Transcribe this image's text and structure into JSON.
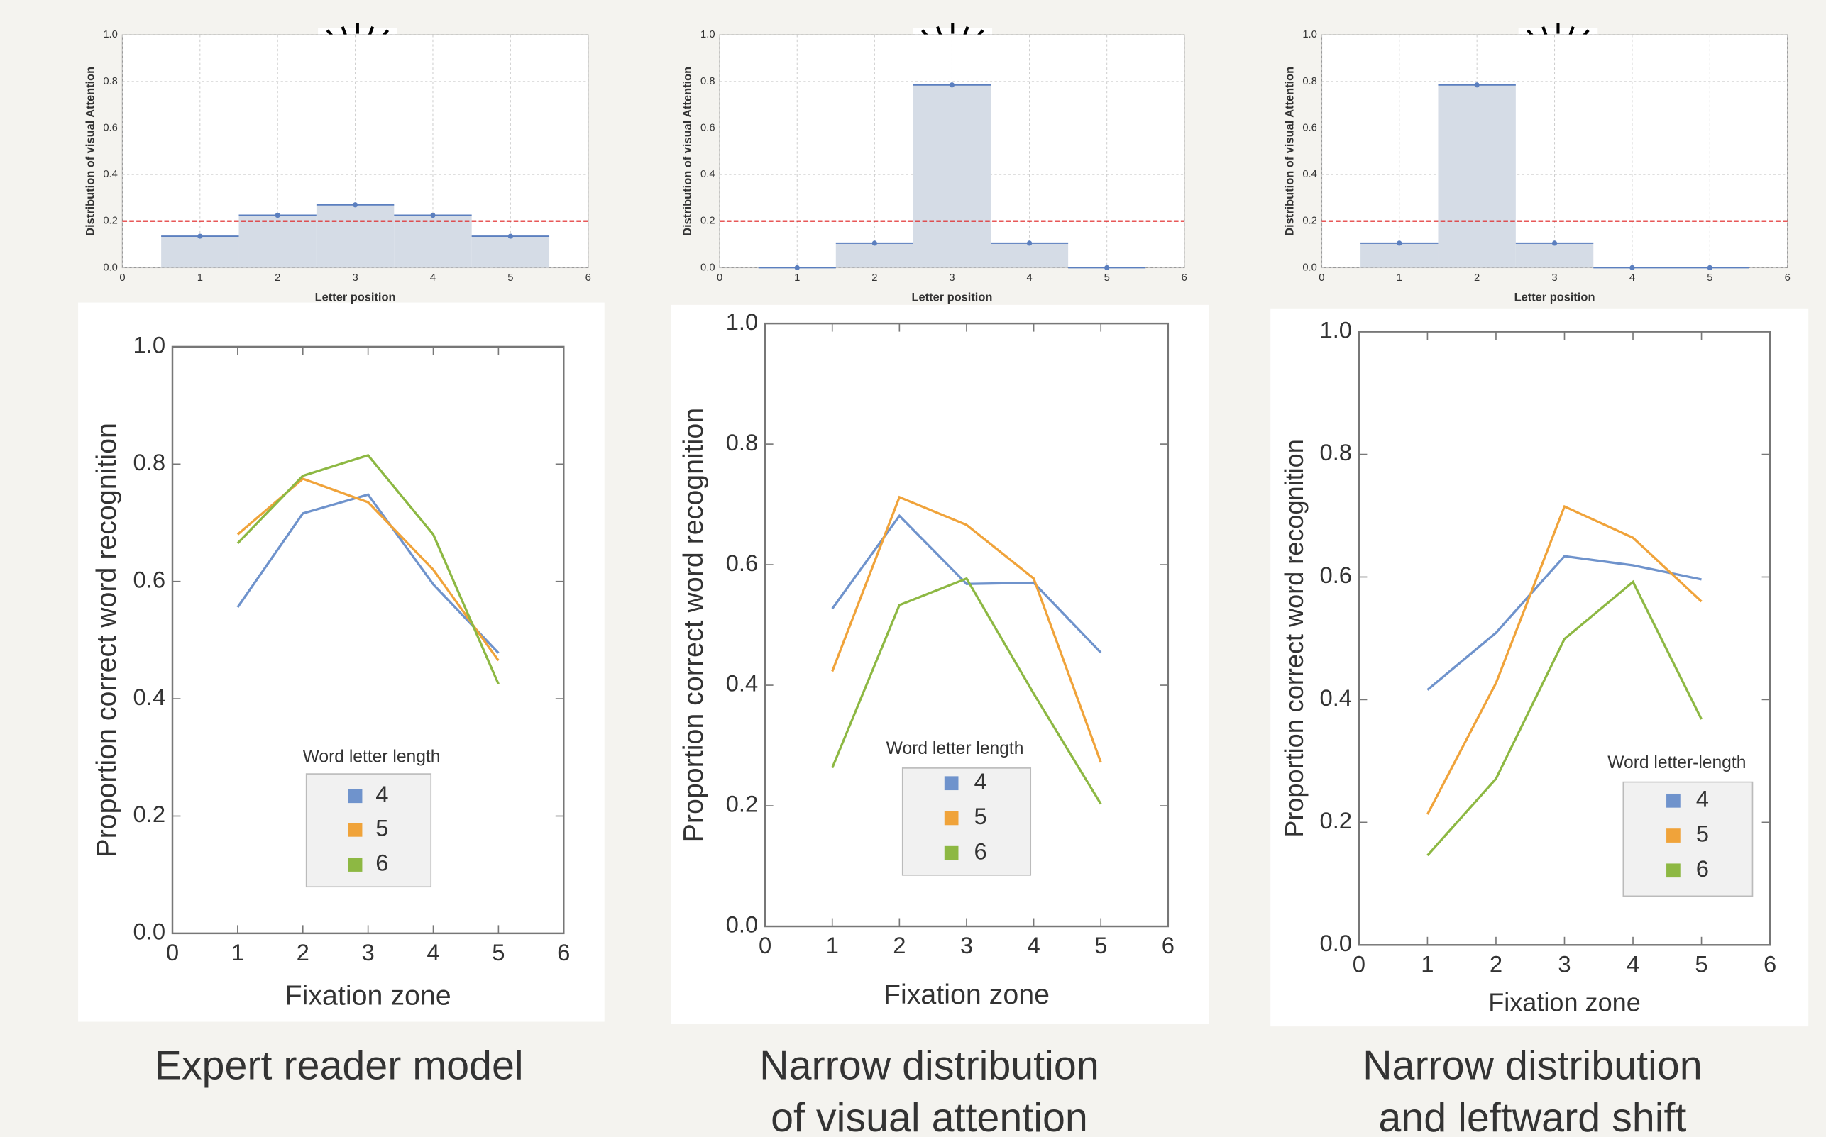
{
  "chart_data": [
    {
      "type": "bar",
      "x": [
        1,
        2,
        3,
        4,
        5
      ],
      "values": [
        0.135,
        0.225,
        0.27,
        0.225,
        0.135
      ],
      "color": "#5b7fbf",
      "fill": "#d5dce6",
      "xlim": [
        0,
        6
      ],
      "xticks": [
        0,
        1,
        2,
        3,
        4,
        5,
        6
      ],
      "ylim": [
        0,
        1
      ],
      "yticks": [
        {
          "value": 0,
          "label": "0.0"
        },
        0.2,
        0.4,
        0.6,
        0.8,
        {
          "value": 1,
          "label": "1.0"
        }
      ],
      "grid": true,
      "hline": 0.2,
      "hline_color": "#e02020",
      "xlabel": "Letter position",
      "ylabel": "Distribution of visual Attention"
    },
    {
      "type": "bar",
      "x": [
        1,
        2,
        3,
        4,
        5
      ],
      "values": [
        0,
        0.105,
        0.785,
        0.105,
        0
      ],
      "color": "#5b7fbf",
      "fill": "#d5dce6",
      "xlim": [
        0,
        6
      ],
      "xticks": [
        0,
        1,
        2,
        3,
        4,
        5,
        6
      ],
      "ylim": [
        0,
        1
      ],
      "yticks": [
        {
          "value": 0,
          "label": "0.0"
        },
        0.2,
        0.4,
        0.6,
        0.8,
        {
          "value": 1,
          "label": "1.0"
        }
      ],
      "grid": true,
      "hline": 0.2,
      "hline_color": "#e02020",
      "xlabel": "Letter position",
      "ylabel": "Distribution of visual Attention"
    },
    {
      "type": "bar",
      "x": [
        1,
        2,
        3,
        4,
        5
      ],
      "values": [
        0.105,
        0.785,
        0.105,
        0,
        0
      ],
      "color": "#5b7fbf",
      "fill": "#d5dce6",
      "xlim": [
        0,
        6
      ],
      "xticks": [
        0,
        1,
        2,
        3,
        4,
        5,
        6
      ],
      "ylim": [
        0,
        1
      ],
      "yticks": [
        {
          "value": 0,
          "label": "0.0"
        },
        0.2,
        0.4,
        0.6,
        0.8,
        {
          "value": 1,
          "label": "1.0"
        }
      ],
      "grid": true,
      "hline": 0.2,
      "hline_color": "#e02020",
      "xlabel": "Letter position",
      "ylabel": "Distribution of visual Attention"
    },
    {
      "type": "line",
      "x": [
        1,
        2,
        3,
        4,
        5
      ],
      "series": [
        {
          "name": "4",
          "color": "#6f93cc",
          "values": [
            0.556,
            0.716,
            0.748,
            0.595,
            0.478
          ]
        },
        {
          "name": "5",
          "color": "#f0a33a",
          "values": [
            0.68,
            0.775,
            0.735,
            0.62,
            0.465
          ]
        },
        {
          "name": "6",
          "color": "#8db843",
          "values": [
            0.665,
            0.78,
            0.815,
            0.68,
            0.425
          ]
        }
      ],
      "xlim": [
        0,
        6
      ],
      "xticks": [
        0,
        1,
        2,
        3,
        4,
        5,
        6
      ],
      "ylim": [
        0,
        1
      ],
      "yticks": [
        {
          "value": 0,
          "label": "0.0"
        },
        0.2,
        0.4,
        0.6,
        0.8,
        {
          "value": 1,
          "label": "1.0"
        }
      ],
      "grid": false,
      "legend_title": "Word letter length",
      "xlabel": "Fixation zone",
      "ylabel": "Proportion correct word recognition"
    },
    {
      "type": "line",
      "x": [
        1,
        2,
        3,
        4,
        5
      ],
      "series": [
        {
          "name": "4",
          "color": "#6f93cc",
          "values": [
            0.527,
            0.681,
            0.568,
            0.57,
            0.454
          ]
        },
        {
          "name": "5",
          "color": "#f0a33a",
          "values": [
            0.423,
            0.712,
            0.666,
            0.577,
            0.272
          ]
        },
        {
          "name": "6",
          "color": "#8db843",
          "values": [
            0.263,
            0.533,
            0.577,
            0.386,
            0.203
          ]
        }
      ],
      "xlim": [
        0,
        6
      ],
      "xticks": [
        0,
        1,
        2,
        3,
        4,
        5,
        6
      ],
      "ylim": [
        0,
        1
      ],
      "yticks": [
        {
          "value": 0,
          "label": "0.0"
        },
        0.2,
        0.4,
        0.6,
        0.8,
        {
          "value": 1,
          "label": "1.0"
        }
      ],
      "grid": false,
      "legend_title": "Word letter length",
      "xlabel": "Fixation zone",
      "ylabel": "Proportion correct word recognition"
    },
    {
      "type": "line",
      "x": [
        1,
        2,
        3,
        4,
        5
      ],
      "series": [
        {
          "name": "4",
          "color": "#6f93cc",
          "values": [
            0.416,
            0.509,
            0.634,
            0.619,
            0.596
          ]
        },
        {
          "name": "5",
          "color": "#f0a33a",
          "values": [
            0.213,
            0.427,
            0.715,
            0.664,
            0.56
          ]
        },
        {
          "name": "6",
          "color": "#8db843",
          "values": [
            0.146,
            0.271,
            0.499,
            0.592,
            0.368
          ]
        }
      ],
      "xlim": [
        0,
        6
      ],
      "xticks": [
        0,
        1,
        2,
        3,
        4,
        5,
        6
      ],
      "ylim": [
        0,
        1
      ],
      "yticks": [
        {
          "value": 0,
          "label": "0.0"
        },
        0.2,
        0.4,
        0.6,
        0.8,
        {
          "value": 1,
          "label": "1.0"
        }
      ],
      "grid": false,
      "legend_title": "Word letter-length",
      "xlabel": "Fixation zone",
      "ylabel": "Proportion correct word recognition"
    }
  ],
  "captions": [
    [
      "Expert reader model"
    ],
    [
      "Narrow distribution",
      "of visual attention"
    ],
    [
      "Narrow distribution",
      "and leftward shift"
    ]
  ]
}
